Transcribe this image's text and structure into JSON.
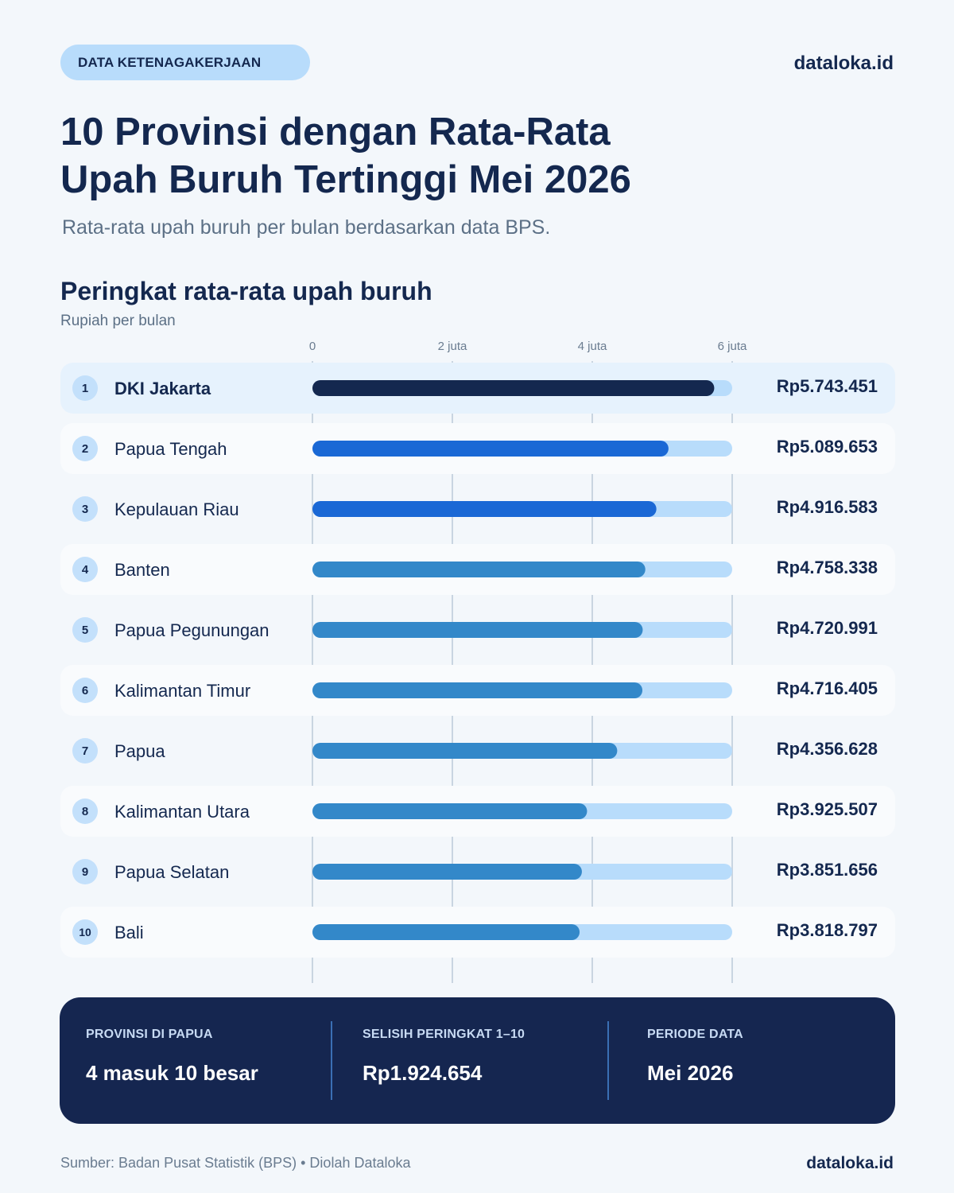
{
  "header": {
    "category": "DATA KETENAGAKERJAAN",
    "brand": "dataloka.id",
    "title": "10 Provinsi dengan Rata-Rata Upah Buruh Tertinggi Mei 2026",
    "subtitle": "Rata-rata upah buruh per bulan berdasarkan data BPS."
  },
  "section": {
    "title": "Peringkat rata-rata upah buruh",
    "unit": "Rupiah per bulan"
  },
  "chart_data": {
    "type": "bar",
    "orientation": "horizontal",
    "title": "Peringkat rata-rata upah buruh",
    "xlabel": "Rupiah per bulan",
    "xlim": [
      0,
      6000000
    ],
    "x_ticks": [
      {
        "value": 0,
        "label": "0"
      },
      {
        "value": 2000000,
        "label": "2 juta"
      },
      {
        "value": 4000000,
        "label": "4 juta"
      },
      {
        "value": 6000000,
        "label": "6 juta"
      }
    ],
    "grid": true,
    "rows": [
      {
        "rank": "1",
        "province": "DKI Jakarta",
        "value": 5743451,
        "label": "Rp5.743.451",
        "color": "#14284f"
      },
      {
        "rank": "2",
        "province": "Papua Tengah",
        "value": 5089653,
        "label": "Rp5.089.653",
        "color": "#1a68d5"
      },
      {
        "rank": "3",
        "province": "Kepulauan Riau",
        "value": 4916583,
        "label": "Rp4.916.583",
        "color": "#1a68d5"
      },
      {
        "rank": "4",
        "province": "Banten",
        "value": 4758338,
        "label": "Rp4.758.338",
        "color": "#3388c9"
      },
      {
        "rank": "5",
        "province": "Papua Pegunungan",
        "value": 4720991,
        "label": "Rp4.720.991",
        "color": "#3388c9"
      },
      {
        "rank": "6",
        "province": "Kalimantan Timur",
        "value": 4716405,
        "label": "Rp4.716.405",
        "color": "#3388c9"
      },
      {
        "rank": "7",
        "province": "Papua",
        "value": 4356628,
        "label": "Rp4.356.628",
        "color": "#3388c9"
      },
      {
        "rank": "8",
        "province": "Kalimantan Utara",
        "value": 3925507,
        "label": "Rp3.925.507",
        "color": "#3388c9"
      },
      {
        "rank": "9",
        "province": "Papua Selatan",
        "value": 3851656,
        "label": "Rp3.851.656",
        "color": "#3388c9"
      },
      {
        "rank": "10",
        "province": "Bali",
        "value": 3818797,
        "label": "Rp3.818.797",
        "color": "#3388c9"
      }
    ]
  },
  "summary": [
    {
      "label": "PROVINSI DI PAPUA",
      "value": "4 masuk 10 besar"
    },
    {
      "label": "SELISIH PERINGKAT 1–10",
      "value": "Rp1.924.654"
    },
    {
      "label": "PERIODE DATA",
      "value": "Mei 2026"
    }
  ],
  "footer": {
    "source": "Sumber: Badan Pusat Statistik (BPS)  •  Diolah Dataloka",
    "brand": "dataloka.id"
  },
  "colors": {
    "background": "#f3f7fb",
    "navy": "#14284f",
    "track": "#b8dcfb",
    "highlight_row": "#e6f2fd"
  }
}
